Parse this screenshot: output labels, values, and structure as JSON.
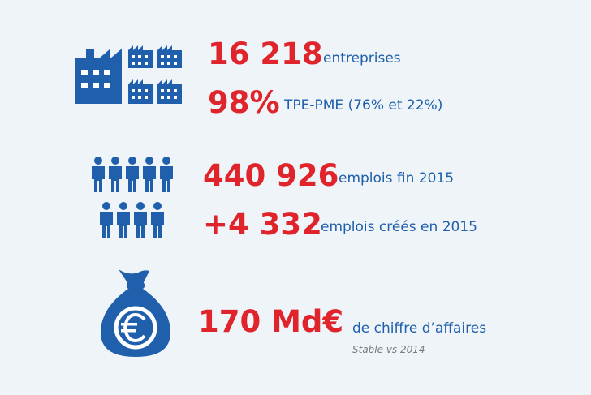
{
  "colors": {
    "background": "#eef4f8",
    "accent_red": "#e0242c",
    "primary_blue": "#1f5fab",
    "note_gray": "#7a7a7a"
  },
  "rows": [
    {
      "icon": "factory-icon",
      "lines": [
        {
          "value": "16 218",
          "label": "entreprises"
        },
        {
          "value": "98%",
          "label": "TPE-PME (76% et 22%)"
        }
      ]
    },
    {
      "icon": "people-icon",
      "lines": [
        {
          "value": "440 926",
          "label": "emplois fin 2015"
        },
        {
          "value": "+4 332",
          "label": "emplois créés en 2015"
        }
      ]
    },
    {
      "icon": "euro-money-bag-icon",
      "lines": [
        {
          "value": "170 Md€",
          "label": "de chiffre d’affaires",
          "note": "Stable vs 2014"
        }
      ]
    }
  ]
}
